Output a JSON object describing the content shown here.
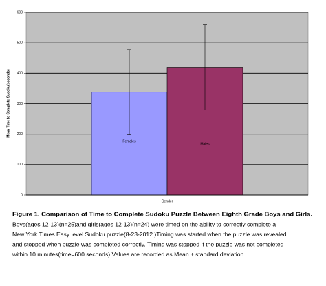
{
  "chart_data": {
    "type": "bar",
    "x_label": "Gender",
    "y_label": "Mean Time to Complete Sudoku(seconds)",
    "categories": [
      "Females",
      "Males"
    ],
    "values": [
      338,
      420
    ],
    "errors": [
      140,
      140
    ],
    "colors": [
      "#9999ff",
      "#993366"
    ],
    "ylim": [
      0,
      600
    ],
    "yticks": [
      0,
      100,
      200,
      300,
      400,
      500,
      600
    ],
    "grid": true,
    "background": "#c0c0c0"
  },
  "caption": {
    "title": "Figure 1. Comparison of Time to Complete Sudoku Puzzle Between Eighth Grade Boys and Girls.",
    "lines": [
      "Boys(ages 12-13)(n=25)and girls(ages 12-13)(n=24) were timed on the ability to correctly complete a",
      "New York Times Easy level Sudoku puzzle(8-23-2012.)Timing was started when the puzzle was revealed",
      "and stopped when puzzle was completed correctly. Timing was stopped if the puzzle was not completed",
      "within 10 minutes(time=600 seconds) Values are recorded as Mean ± standard deviation."
    ]
  }
}
